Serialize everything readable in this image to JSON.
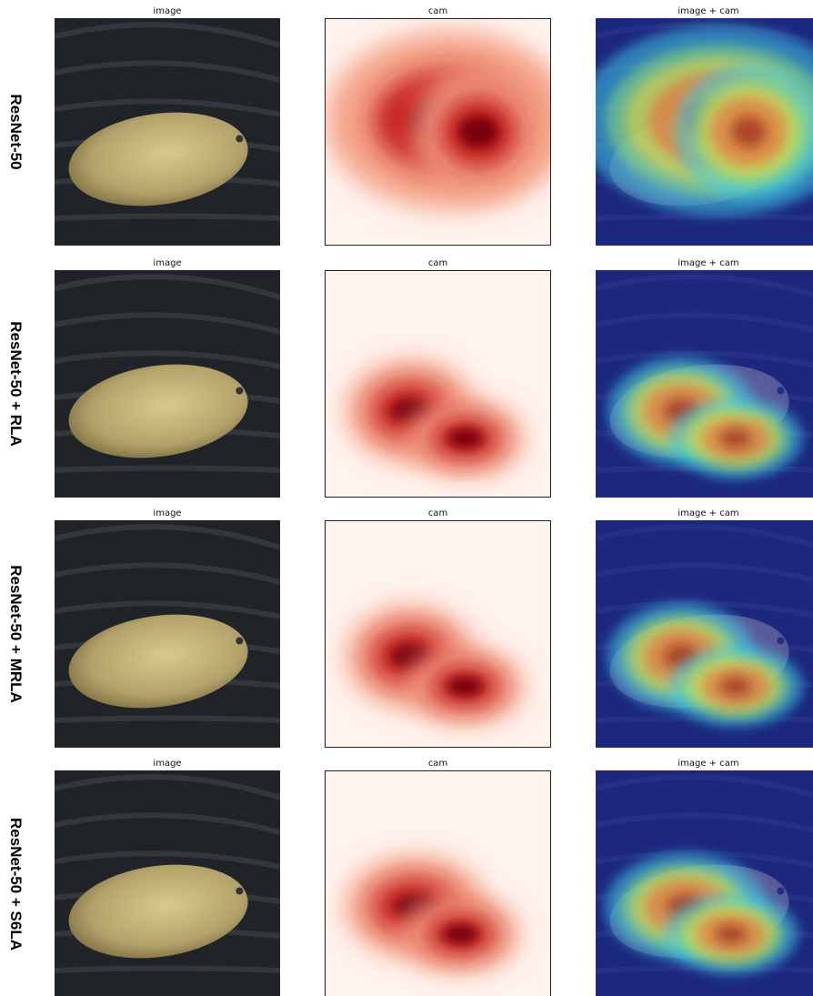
{
  "rows": [
    {
      "label": "ResNet-50",
      "panels": [
        "image",
        "cam",
        "image + cam"
      ]
    },
    {
      "label": "ResNet-50 + RLA",
      "panels": [
        "image",
        "cam",
        "image + cam"
      ]
    },
    {
      "label": "ResNet-50 + MRLA",
      "panels": [
        "image",
        "cam",
        "image + cam"
      ]
    },
    {
      "label": "ResNet-50 + S6LA",
      "panels": [
        "image",
        "cam",
        "image + cam"
      ]
    }
  ]
}
